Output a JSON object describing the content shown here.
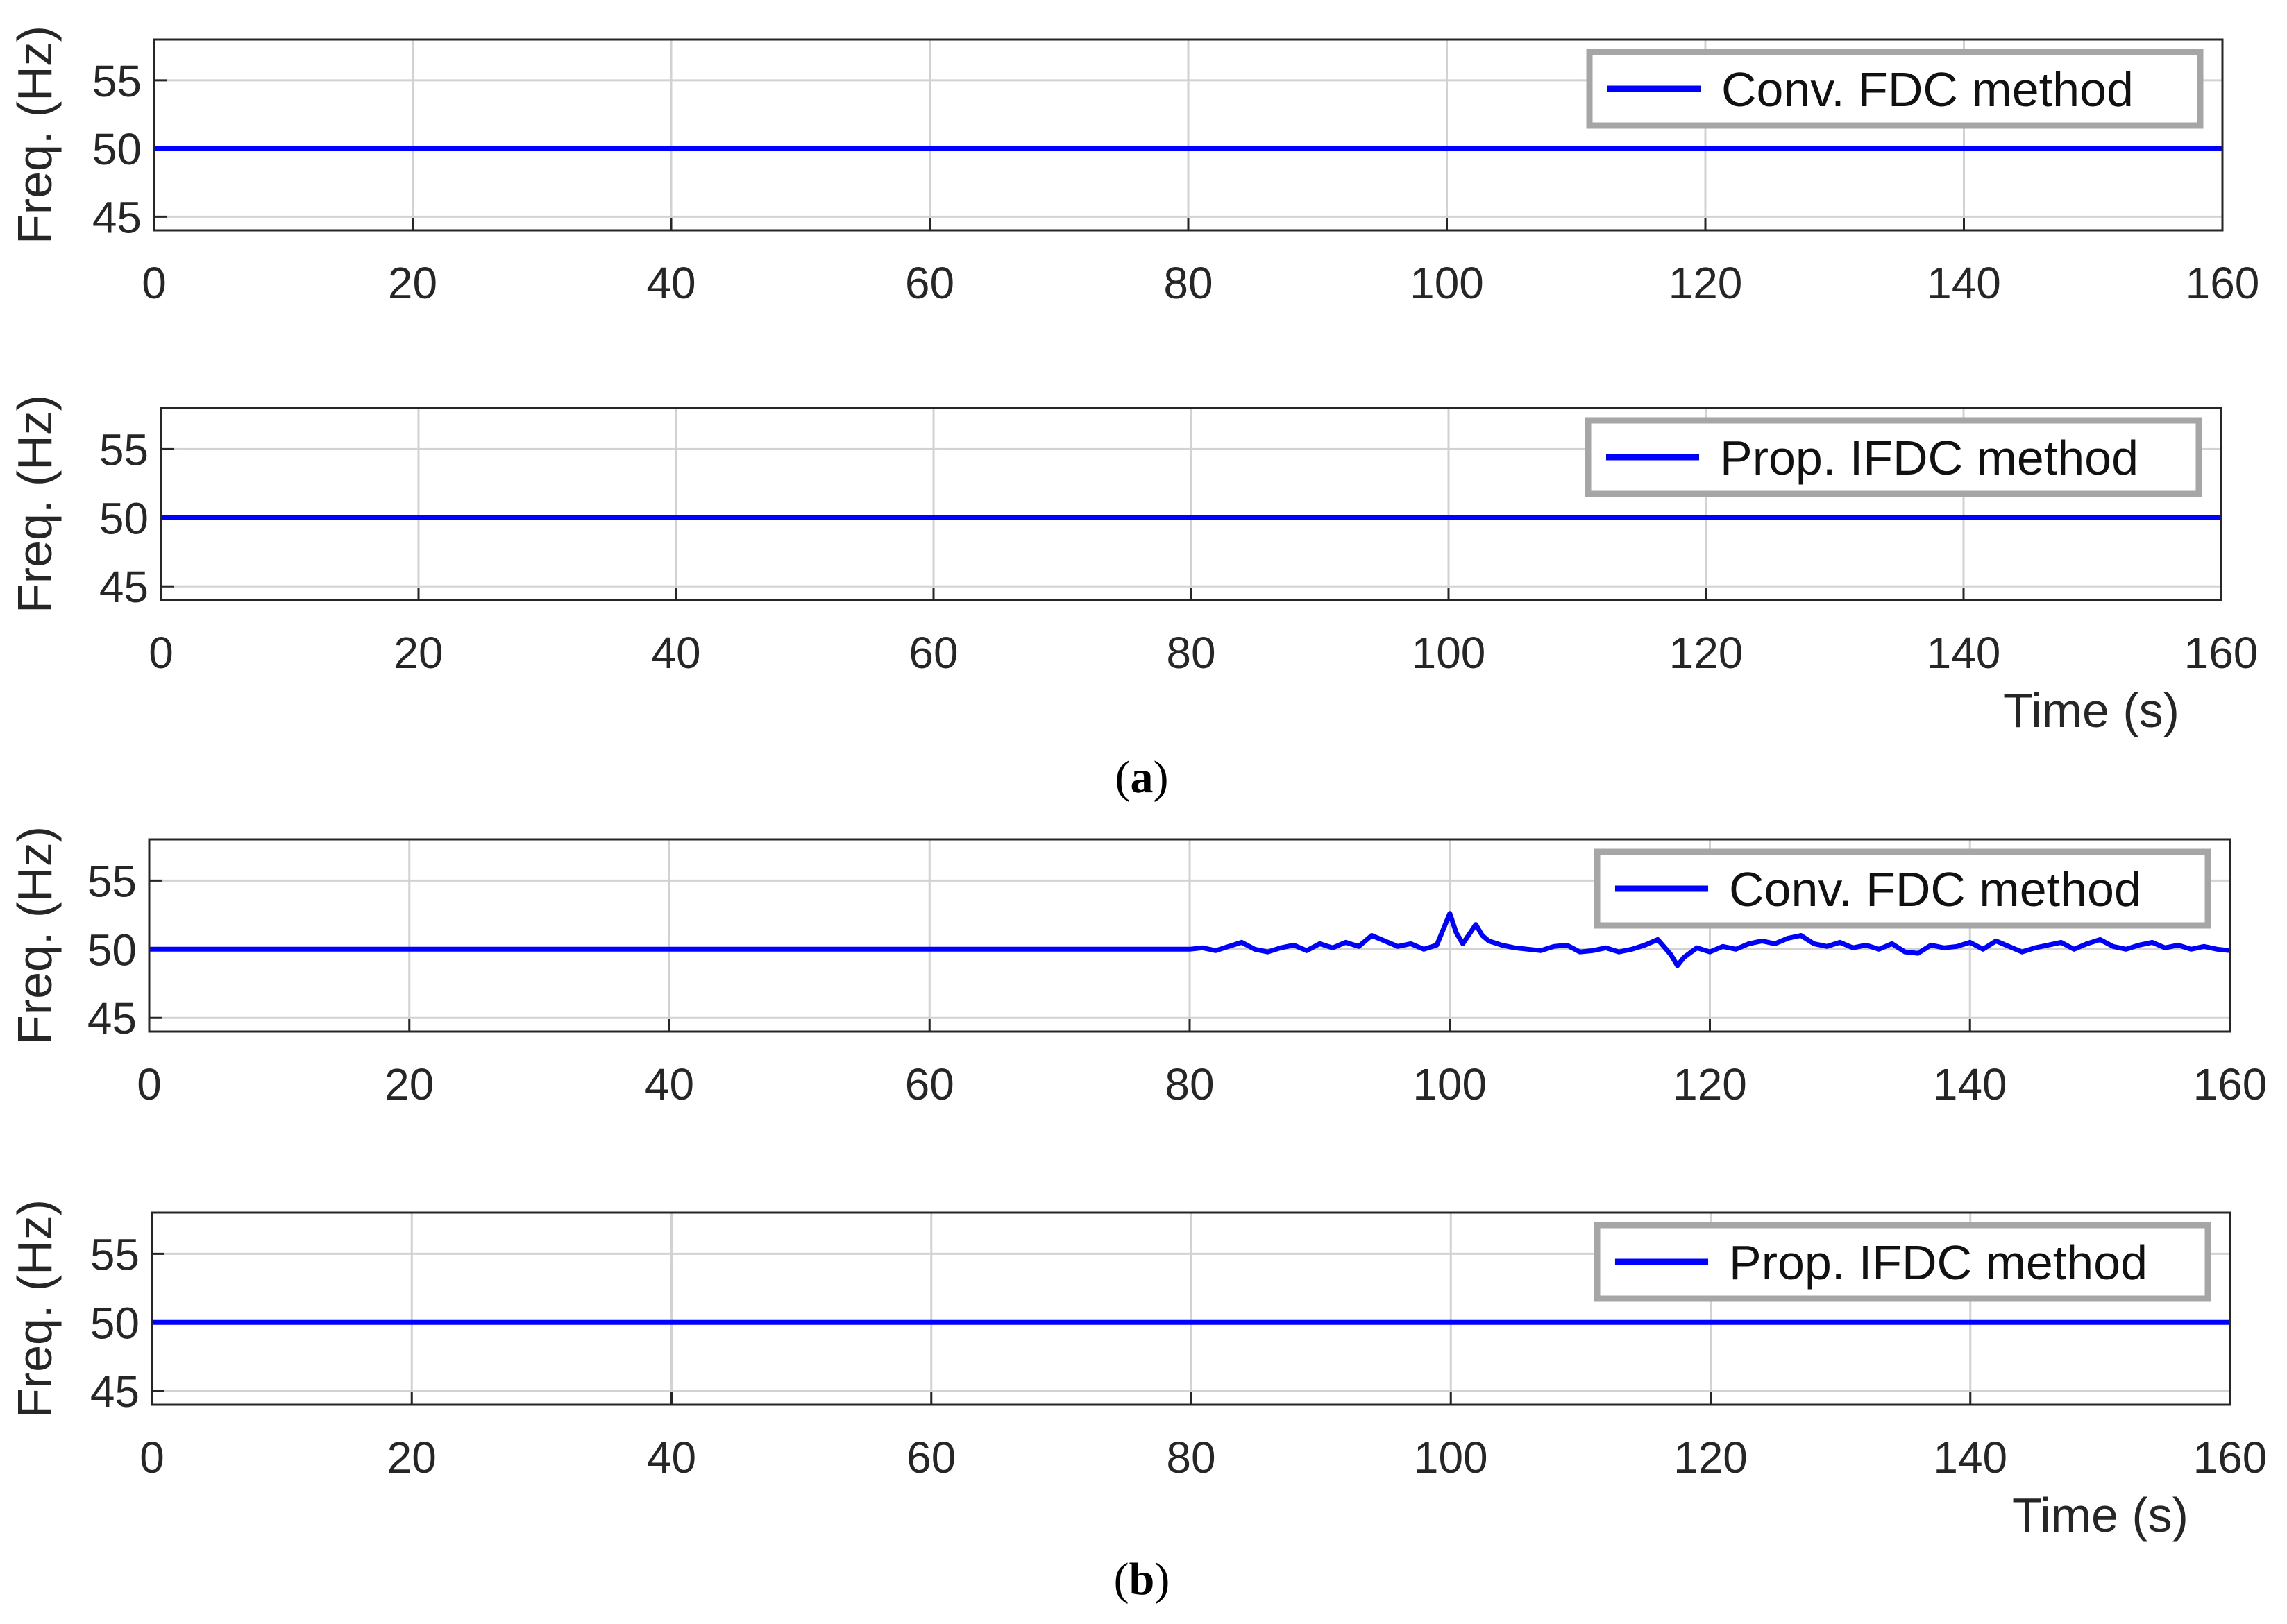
{
  "chart_data": [
    {
      "type": "line",
      "panel_group": "a",
      "ylabel": "Freq. (Hz)",
      "xlabel": "",
      "xlim": [
        0,
        160
      ],
      "ylim": [
        44,
        58
      ],
      "xticks": [
        0,
        20,
        40,
        60,
        80,
        100,
        120,
        140,
        160
      ],
      "yticks": [
        45,
        50,
        55
      ],
      "grid": true,
      "legend_position": "top-right",
      "series": [
        {
          "name": "Conv. FDC method",
          "color": "#0000ff",
          "x": [
            0,
            160
          ],
          "y": [
            50,
            50
          ]
        }
      ]
    },
    {
      "type": "line",
      "panel_group": "a",
      "ylabel": "Freq. (Hz)",
      "xlabel": "Time (s)",
      "xlim": [
        0,
        160
      ],
      "ylim": [
        44,
        58
      ],
      "xticks": [
        0,
        20,
        40,
        60,
        80,
        100,
        120,
        140,
        160
      ],
      "yticks": [
        45,
        50,
        55
      ],
      "grid": true,
      "legend_position": "top-right",
      "series": [
        {
          "name": "Prop. IFDC method",
          "color": "#0000ff",
          "x": [
            0,
            160
          ],
          "y": [
            50,
            50
          ]
        }
      ]
    },
    {
      "type": "line",
      "panel_group": "b",
      "ylabel": "Freq. (Hz)",
      "xlabel": "",
      "xlim": [
        0,
        160
      ],
      "ylim": [
        44,
        58
      ],
      "xticks": [
        0,
        20,
        40,
        60,
        80,
        100,
        120,
        140,
        160
      ],
      "yticks": [
        45,
        50,
        55
      ],
      "grid": true,
      "legend_position": "top-right",
      "series": [
        {
          "name": "Conv. FDC method",
          "color": "#0000ff",
          "x": [
            0,
            80,
            81,
            82,
            83,
            84,
            85,
            86,
            87,
            88,
            89,
            90,
            91,
            92,
            93,
            94,
            95,
            96,
            97,
            98,
            99,
            100,
            100.5,
            101,
            102,
            102.5,
            103,
            104,
            105,
            106,
            107,
            108,
            109,
            110,
            111,
            112,
            113,
            114,
            115,
            116,
            117,
            117.5,
            118,
            119,
            120,
            121,
            122,
            123,
            124,
            125,
            126,
            127,
            128,
            129,
            130,
            131,
            132,
            133,
            134,
            135,
            136,
            137,
            138,
            139,
            140,
            141,
            142,
            143,
            144,
            145,
            146,
            147,
            148,
            149,
            150,
            151,
            152,
            153,
            154,
            155,
            156,
            157,
            158,
            159,
            160
          ],
          "y": [
            50,
            50,
            50.1,
            49.9,
            50.2,
            50.5,
            50.0,
            49.8,
            50.1,
            50.3,
            49.9,
            50.4,
            50.1,
            50.5,
            50.2,
            51.0,
            50.6,
            50.2,
            50.4,
            50.0,
            50.3,
            52.6,
            51.2,
            50.4,
            51.8,
            51.0,
            50.6,
            50.3,
            50.1,
            50.0,
            49.9,
            50.2,
            50.3,
            49.8,
            49.9,
            50.1,
            49.8,
            50.0,
            50.3,
            50.7,
            49.6,
            48.8,
            49.4,
            50.1,
            49.8,
            50.2,
            50.0,
            50.4,
            50.6,
            50.4,
            50.8,
            51.0,
            50.4,
            50.2,
            50.5,
            50.1,
            50.3,
            50.0,
            50.4,
            49.8,
            49.7,
            50.3,
            50.1,
            50.2,
            50.5,
            50.0,
            50.6,
            50.2,
            49.8,
            50.1,
            50.3,
            50.5,
            50.0,
            50.4,
            50.7,
            50.2,
            50.0,
            50.3,
            50.5,
            50.1,
            50.3,
            50.0,
            50.2,
            50.0,
            49.9
          ]
        }
      ]
    },
    {
      "type": "line",
      "panel_group": "b",
      "ylabel": "Freq. (Hz)",
      "xlabel": "Time (s)",
      "xlim": [
        0,
        160
      ],
      "ylim": [
        44,
        58
      ],
      "xticks": [
        0,
        20,
        40,
        60,
        80,
        100,
        120,
        140,
        160
      ],
      "yticks": [
        45,
        50,
        55
      ],
      "grid": true,
      "legend_position": "top-right",
      "series": [
        {
          "name": "Prop. IFDC method",
          "color": "#0000ff",
          "x": [
            0,
            160
          ],
          "y": [
            50,
            50
          ]
        }
      ]
    }
  ],
  "captions": {
    "a": {
      "open": "(",
      "letter": "a",
      "close": ")"
    },
    "b": {
      "open": "(",
      "letter": "b",
      "close": ")"
    }
  }
}
